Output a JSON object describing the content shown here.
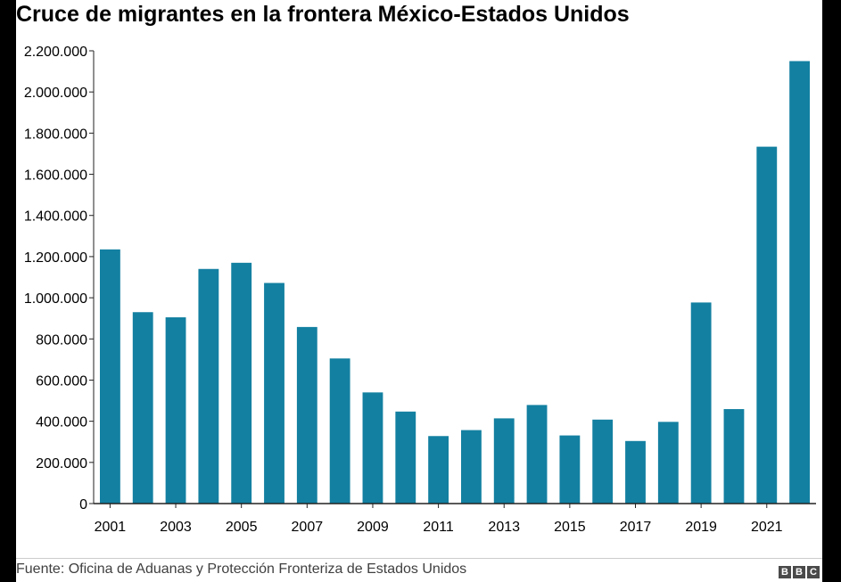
{
  "title": "Cruce de migrantes en la frontera México-Estados Unidos",
  "source": "Fuente: Oficina de Aduanas y Protección Fronteriza de Estados Unidos",
  "logo": [
    "B",
    "B",
    "C"
  ],
  "colors": {
    "bar": "#1380a1",
    "axis": "#222222",
    "background": "#ffffff",
    "frame": "#000000"
  },
  "chart_data": {
    "type": "bar",
    "title": "Cruce de migrantes en la frontera México-Estados Unidos",
    "categories": [
      "2001",
      "2002",
      "2003",
      "2004",
      "2005",
      "2006",
      "2007",
      "2008",
      "2009",
      "2010",
      "2011",
      "2012",
      "2013",
      "2014",
      "2015",
      "2016",
      "2017",
      "2018",
      "2019",
      "2020",
      "2021",
      "2022"
    ],
    "x_tick_labels": [
      "2001",
      "2003",
      "2005",
      "2007",
      "2009",
      "2011",
      "2013",
      "2015",
      "2017",
      "2019",
      "2021"
    ],
    "values": [
      1235000,
      930000,
      905000,
      1140000,
      1170000,
      1072000,
      858000,
      705000,
      540000,
      447000,
      328000,
      357000,
      414000,
      479000,
      331000,
      408000,
      304000,
      397000,
      977000,
      459000,
      1734000,
      2150000
    ],
    "ylim": [
      0,
      2200000
    ],
    "yticks": [
      0,
      200000,
      400000,
      600000,
      800000,
      1000000,
      1200000,
      1400000,
      1600000,
      1800000,
      2000000,
      2200000
    ],
    "ytick_labels": [
      "0",
      "200.000",
      "400.000",
      "600.000",
      "800.000",
      "1.000.000",
      "1.200.000",
      "1.400.000",
      "1.600.000",
      "1.800.000",
      "2.000.000",
      "2.200.000"
    ],
    "xlabel": "",
    "ylabel": "",
    "grid": false,
    "legend": "none"
  }
}
